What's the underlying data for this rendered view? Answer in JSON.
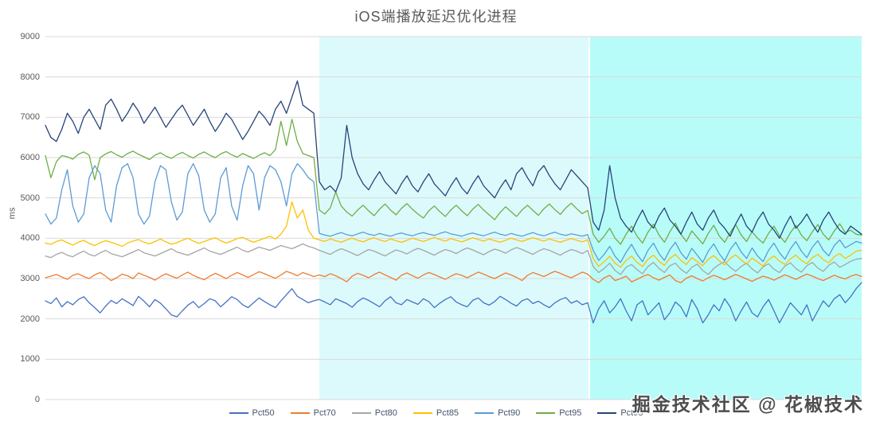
{
  "title": "iOS端播放延迟优化进程",
  "watermark": "掘金技术社区 @ 花椒技术",
  "colors": {
    "grid": "#D9D9D9",
    "axis_text": "#595959",
    "phase2_band": "#DCFAFC",
    "phase3_band": "#B8FCF9",
    "band_separator": "#FFFFFF"
  },
  "chart_data": {
    "type": "line",
    "title": "iOS端播放延迟优化进程",
    "xlabel": "",
    "ylabel": "ms",
    "ylim": [
      0,
      9000
    ],
    "ytick_interval": 1000,
    "yticks": [
      0,
      1000,
      2000,
      3000,
      4000,
      5000,
      6000,
      7000,
      8000,
      9000
    ],
    "grid": true,
    "legend_position": "bottom",
    "x_count": 150,
    "phases": [
      {
        "name": "phase-1-baseline",
        "start_frac": 0.0,
        "end_frac": 0.3346,
        "color": "#FFFFFF"
      },
      {
        "name": "phase-2-optimization-1",
        "start_frac": 0.3346,
        "end_frac": 0.6663,
        "color": "#DCFAFC"
      },
      {
        "name": "phase-3-optimization-2",
        "start_frac": 0.6663,
        "end_frac": 1.0,
        "color": "#B8FCF9"
      }
    ],
    "series": [
      {
        "name": "Pct50",
        "color": "#4472C4",
        "values": [
          2450,
          2380,
          2520,
          2300,
          2430,
          2350,
          2480,
          2550,
          2400,
          2280,
          2150,
          2320,
          2460,
          2380,
          2500,
          2420,
          2330,
          2560,
          2440,
          2300,
          2480,
          2390,
          2250,
          2100,
          2050,
          2200,
          2340,
          2430,
          2280,
          2380,
          2500,
          2450,
          2300,
          2420,
          2550,
          2480,
          2350,
          2280,
          2400,
          2520,
          2430,
          2350,
          2280,
          2450,
          2600,
          2750,
          2560,
          2480,
          2400,
          2450,
          2480,
          2420,
          2350,
          2500,
          2440,
          2380,
          2290,
          2430,
          2520,
          2460,
          2380,
          2300,
          2450,
          2550,
          2400,
          2350,
          2480,
          2420,
          2360,
          2500,
          2430,
          2280,
          2390,
          2480,
          2550,
          2420,
          2350,
          2300,
          2460,
          2520,
          2400,
          2340,
          2430,
          2560,
          2480,
          2390,
          2320,
          2450,
          2500,
          2380,
          2440,
          2350,
          2280,
          2400,
          2480,
          2530,
          2390,
          2450,
          2350,
          2400,
          1900,
          2250,
          2450,
          2150,
          2300,
          2500,
          2200,
          1950,
          2350,
          2450,
          2100,
          2250,
          2400,
          1980,
          2150,
          2420,
          2300,
          2050,
          2480,
          2250,
          1900,
          2100,
          2350,
          2200,
          2500,
          2300,
          1950,
          2200,
          2420,
          2150,
          2050,
          2300,
          2480,
          2200,
          1900,
          2150,
          2400,
          2250,
          2100,
          2350,
          1950,
          2200,
          2450,
          2300,
          2500,
          2600,
          2400,
          2550,
          2750,
          2900
        ]
      },
      {
        "name": "Pct70",
        "color": "#ED7D31",
        "values": [
          3020,
          3060,
          3100,
          3040,
          2980,
          3080,
          3120,
          3050,
          3000,
          3090,
          3150,
          3060,
          2950,
          3020,
          3110,
          3070,
          3000,
          3140,
          3080,
          3030,
          2960,
          3050,
          3120,
          3060,
          3010,
          3090,
          3160,
          3080,
          3020,
          2970,
          3060,
          3130,
          3070,
          3000,
          3080,
          3150,
          3090,
          3030,
          3100,
          3170,
          3120,
          3060,
          3010,
          3090,
          3180,
          3130,
          3070,
          3150,
          3100,
          3050,
          3090,
          3050,
          3120,
          3070,
          3000,
          2920,
          3060,
          3130,
          3080,
          3020,
          3100,
          3160,
          3090,
          3030,
          2960,
          3080,
          3140,
          3070,
          3010,
          3090,
          3150,
          3100,
          3040,
          2980,
          3060,
          3120,
          3080,
          3020,
          3090,
          3160,
          3110,
          3050,
          3000,
          3070,
          3140,
          3090,
          3030,
          2950,
          3080,
          3150,
          3100,
          3050,
          3120,
          3180,
          3130,
          3070,
          3020,
          3090,
          3160,
          3110,
          2980,
          2900,
          3020,
          3080,
          2950,
          3000,
          3060,
          2920,
          2980,
          3050,
          3100,
          3020,
          2960,
          3030,
          3090,
          2950,
          2900,
          3010,
          3070,
          3000,
          2940,
          3020,
          3080,
          3030,
          2970,
          3040,
          3100,
          3050,
          2990,
          2930,
          3000,
          3060,
          3020,
          2960,
          3030,
          3090,
          3040,
          2980,
          3050,
          3110,
          3060,
          3000,
          2950,
          3020,
          3080,
          3030,
          2990,
          3060,
          3100,
          3050
        ]
      },
      {
        "name": "Pct80",
        "color": "#A5A5A5",
        "values": [
          3560,
          3520,
          3600,
          3650,
          3580,
          3540,
          3620,
          3680,
          3600,
          3560,
          3640,
          3700,
          3620,
          3580,
          3540,
          3600,
          3660,
          3720,
          3640,
          3600,
          3560,
          3620,
          3680,
          3740,
          3660,
          3620,
          3580,
          3640,
          3700,
          3760,
          3680,
          3640,
          3600,
          3660,
          3720,
          3780,
          3700,
          3660,
          3720,
          3780,
          3740,
          3700,
          3760,
          3820,
          3780,
          3740,
          3800,
          3860,
          3800,
          3760,
          3700,
          3650,
          3600,
          3680,
          3740,
          3690,
          3630,
          3570,
          3650,
          3720,
          3680,
          3620,
          3560,
          3640,
          3710,
          3670,
          3610,
          3690,
          3750,
          3700,
          3640,
          3580,
          3660,
          3720,
          3680,
          3620,
          3700,
          3760,
          3710,
          3650,
          3590,
          3670,
          3730,
          3690,
          3630,
          3710,
          3770,
          3720,
          3660,
          3600,
          3680,
          3740,
          3700,
          3640,
          3580,
          3660,
          3720,
          3680,
          3620,
          3700,
          3300,
          3150,
          3250,
          3380,
          3200,
          3100,
          3280,
          3350,
          3220,
          3120,
          3300,
          3400,
          3250,
          3150,
          3320,
          3380,
          3230,
          3130,
          3280,
          3360,
          3200,
          3100,
          3250,
          3350,
          3420,
          3280,
          3180,
          3300,
          3380,
          3240,
          3140,
          3290,
          3370,
          3230,
          3150,
          3310,
          3390,
          3250,
          3160,
          3320,
          3400,
          3260,
          3180,
          3330,
          3410,
          3280,
          3350,
          3430,
          3480,
          3500
        ]
      },
      {
        "name": "Pct85",
        "color": "#FFC000",
        "values": [
          3880,
          3850,
          3920,
          3960,
          3890,
          3830,
          3900,
          3950,
          3870,
          3820,
          3890,
          3940,
          3900,
          3850,
          3800,
          3880,
          3930,
          3970,
          3900,
          3860,
          3920,
          3980,
          3910,
          3850,
          3890,
          3950,
          4000,
          3930,
          3870,
          3920,
          3970,
          4010,
          3940,
          3880,
          3930,
          3990,
          4020,
          3960,
          3900,
          3950,
          4000,
          4050,
          3980,
          4100,
          4300,
          4900,
          4500,
          4700,
          4200,
          4000,
          3960,
          3920,
          3980,
          3940,
          3900,
          3960,
          4000,
          3950,
          3910,
          3970,
          4010,
          3960,
          3920,
          3980,
          3940,
          3900,
          3950,
          4000,
          3960,
          3920,
          3970,
          4020,
          3970,
          3930,
          3990,
          3950,
          3910,
          3960,
          4010,
          3970,
          3930,
          3980,
          3940,
          3900,
          3950,
          4000,
          3960,
          3920,
          3970,
          4010,
          3970,
          3930,
          3980,
          3940,
          3900,
          3950,
          3990,
          3950,
          3910,
          3960,
          3500,
          3300,
          3420,
          3550,
          3380,
          3280,
          3450,
          3560,
          3400,
          3300,
          3480,
          3580,
          3430,
          3330,
          3500,
          3600,
          3450,
          3350,
          3520,
          3420,
          3320,
          3480,
          3570,
          3440,
          3340,
          3500,
          3590,
          3460,
          3360,
          3510,
          3410,
          3310,
          3470,
          3560,
          3430,
          3350,
          3490,
          3580,
          3450,
          3370,
          3520,
          3600,
          3470,
          3390,
          3540,
          3620,
          3500,
          3580,
          3680,
          3700
        ]
      },
      {
        "name": "Pct90",
        "color": "#5B9BD5",
        "values": [
          4600,
          4350,
          4500,
          5200,
          5700,
          4800,
          4400,
          4600,
          5500,
          5800,
          5600,
          4700,
          4400,
          5300,
          5750,
          5850,
          5500,
          4600,
          4350,
          4550,
          5400,
          5800,
          5700,
          4900,
          4450,
          4650,
          5600,
          5850,
          5550,
          4700,
          4400,
          4600,
          5500,
          5750,
          4800,
          4450,
          5300,
          5800,
          5600,
          4700,
          5500,
          5800,
          5700,
          5400,
          4800,
          5600,
          5850,
          5700,
          5500,
          5400,
          4120,
          4080,
          4050,
          4100,
          4140,
          4090,
          4060,
          4110,
          4150,
          4100,
          4070,
          4120,
          4080,
          4050,
          4100,
          4130,
          4090,
          4060,
          4110,
          4140,
          4100,
          4070,
          4120,
          4160,
          4110,
          4080,
          4050,
          4100,
          4130,
          4090,
          4060,
          4110,
          4150,
          4100,
          4070,
          4120,
          4080,
          4050,
          4100,
          4140,
          4090,
          4060,
          4110,
          4150,
          4100,
          4070,
          4110,
          4080,
          4050,
          4090,
          3700,
          3450,
          3600,
          3800,
          3550,
          3400,
          3650,
          3850,
          3600,
          3420,
          3700,
          3880,
          3620,
          3450,
          3720,
          3900,
          3640,
          3480,
          3750,
          3580,
          3400,
          3680,
          3860,
          3620,
          3440,
          3720,
          3900,
          3660,
          3500,
          3760,
          3560,
          3420,
          3700,
          3880,
          3640,
          3480,
          3740,
          3920,
          3680,
          3520,
          3780,
          3940,
          3700,
          3560,
          3820,
          3960,
          3760,
          3840,
          3920,
          3880
        ]
      },
      {
        "name": "Pct95",
        "color": "#70AD47",
        "values": [
          6050,
          5500,
          5900,
          6050,
          6020,
          5960,
          6080,
          6140,
          6060,
          5450,
          6000,
          6090,
          6150,
          6070,
          6010,
          6100,
          6160,
          6080,
          6020,
          5950,
          6060,
          6120,
          6040,
          5980,
          6070,
          6130,
          6050,
          5990,
          6080,
          6140,
          6060,
          6000,
          6090,
          6150,
          6070,
          6010,
          6100,
          6040,
          5980,
          6060,
          6120,
          6050,
          6200,
          6900,
          6300,
          6950,
          6400,
          6100,
          6050,
          6000,
          4700,
          4600,
          4750,
          5150,
          4800,
          4650,
          4550,
          4700,
          4820,
          4680,
          4560,
          4720,
          4850,
          4700,
          4580,
          4740,
          4860,
          4720,
          4600,
          4500,
          4680,
          4800,
          4660,
          4540,
          4700,
          4820,
          4680,
          4560,
          4720,
          4840,
          4700,
          4580,
          4460,
          4640,
          4780,
          4660,
          4540,
          4700,
          4820,
          4690,
          4570,
          4730,
          4850,
          4710,
          4590,
          4750,
          4870,
          4730,
          4610,
          4690,
          4100,
          3900,
          4050,
          4250,
          4000,
          3850,
          4100,
          4300,
          4050,
          3880,
          4150,
          4350,
          4080,
          3900,
          4160,
          4380,
          4100,
          3920,
          4180,
          4020,
          3860,
          4120,
          4320,
          4060,
          3900,
          4140,
          4340,
          4080,
          3920,
          4160,
          4000,
          3880,
          4120,
          4300,
          4060,
          3900,
          4140,
          4320,
          4080,
          3940,
          4160,
          4340,
          4100,
          3960,
          4180,
          4360,
          4140,
          4200,
          4100,
          4080
        ]
      },
      {
        "name": "Pct98",
        "color": "#264478",
        "values": [
          6800,
          6500,
          6400,
          6700,
          7100,
          6900,
          6600,
          7000,
          7200,
          6950,
          6700,
          7300,
          7450,
          7200,
          6900,
          7100,
          7350,
          7150,
          6850,
          7050,
          7250,
          7000,
          6750,
          6950,
          7150,
          7300,
          7050,
          6800,
          7000,
          7200,
          6900,
          6650,
          6850,
          7100,
          6950,
          6700,
          6450,
          6650,
          6900,
          7150,
          7000,
          6800,
          7200,
          7400,
          7100,
          7500,
          7900,
          7300,
          7200,
          7100,
          5400,
          5200,
          5300,
          5150,
          5500,
          6800,
          6000,
          5600,
          5350,
          5200,
          5450,
          5650,
          5400,
          5250,
          5100,
          5350,
          5550,
          5300,
          5150,
          5400,
          5600,
          5350,
          5200,
          5050,
          5300,
          5500,
          5250,
          5100,
          5350,
          5550,
          5300,
          5150,
          5000,
          5250,
          5450,
          5200,
          5600,
          5750,
          5500,
          5300,
          5650,
          5800,
          5550,
          5350,
          5200,
          5450,
          5700,
          5550,
          5400,
          5250,
          4400,
          4200,
          4700,
          5800,
          5000,
          4500,
          4300,
          4150,
          4450,
          4700,
          4400,
          4250,
          4550,
          4750,
          4450,
          4300,
          4100,
          4400,
          4650,
          4350,
          4200,
          4500,
          4700,
          4400,
          4250,
          4050,
          4350,
          4600,
          4300,
          4150,
          4450,
          4650,
          4350,
          4200,
          4000,
          4300,
          4550,
          4250,
          4400,
          4600,
          4350,
          4150,
          4450,
          4650,
          4400,
          4200,
          4100,
          4300,
          4200,
          4100
        ]
      }
    ]
  }
}
